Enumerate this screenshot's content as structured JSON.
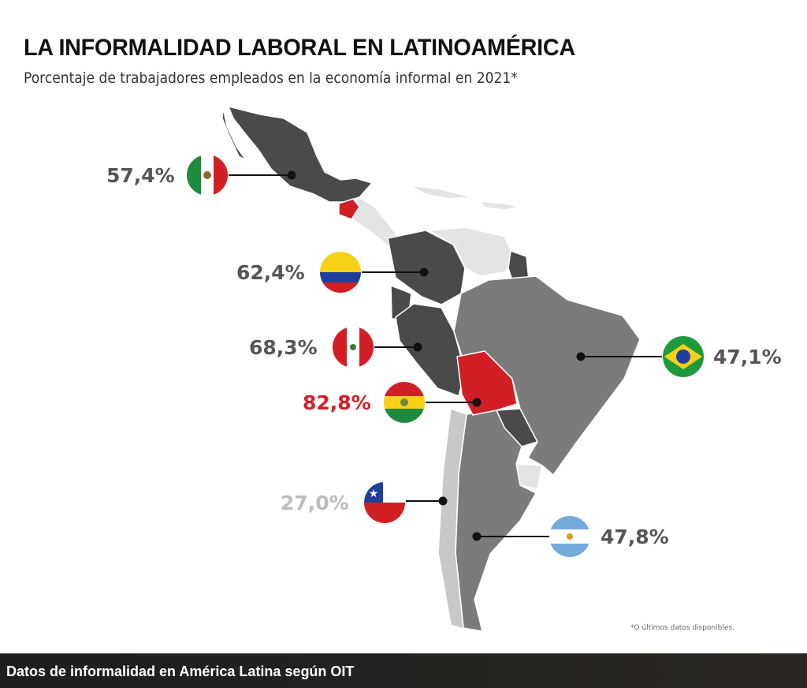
{
  "title": "LA INFORMALIDAD LABORAL EN LATINOAMÉRICA",
  "subtitle": "Porcentaje de trabajadores empleados en la economía informal en 2021*",
  "countries": [
    {
      "name": "México",
      "value": "57,4%",
      "flag": "mexico-flag-icon"
    },
    {
      "name": "Colombia",
      "value": "62,4%",
      "flag": "colombia-flag-icon"
    },
    {
      "name": "Perú",
      "value": "68,3%",
      "flag": "peru-flag-icon"
    },
    {
      "name": "Bolivia",
      "value": "82,8%",
      "flag": "bolivia-flag-icon",
      "color": "#d21f26"
    },
    {
      "name": "Chile",
      "value": "27,0%",
      "flag": "chile-flag-icon",
      "color": "#bdbdbd"
    },
    {
      "name": "Argentina",
      "value": "47,8%",
      "flag": "argentina-flag-icon"
    },
    {
      "name": "Brasil",
      "value": "47,1%",
      "flag": "brazil-flag-icon"
    }
  ],
  "footnote": "*O últimos datos disponibles.",
  "caption": "Datos de informalidad en América Latina según OIT",
  "colors": {
    "highlight": "#d21f26",
    "dark": "#4a4a4a",
    "mid": "#7b7b7b",
    "light": "#d9d9d9",
    "text": "#555555"
  }
}
